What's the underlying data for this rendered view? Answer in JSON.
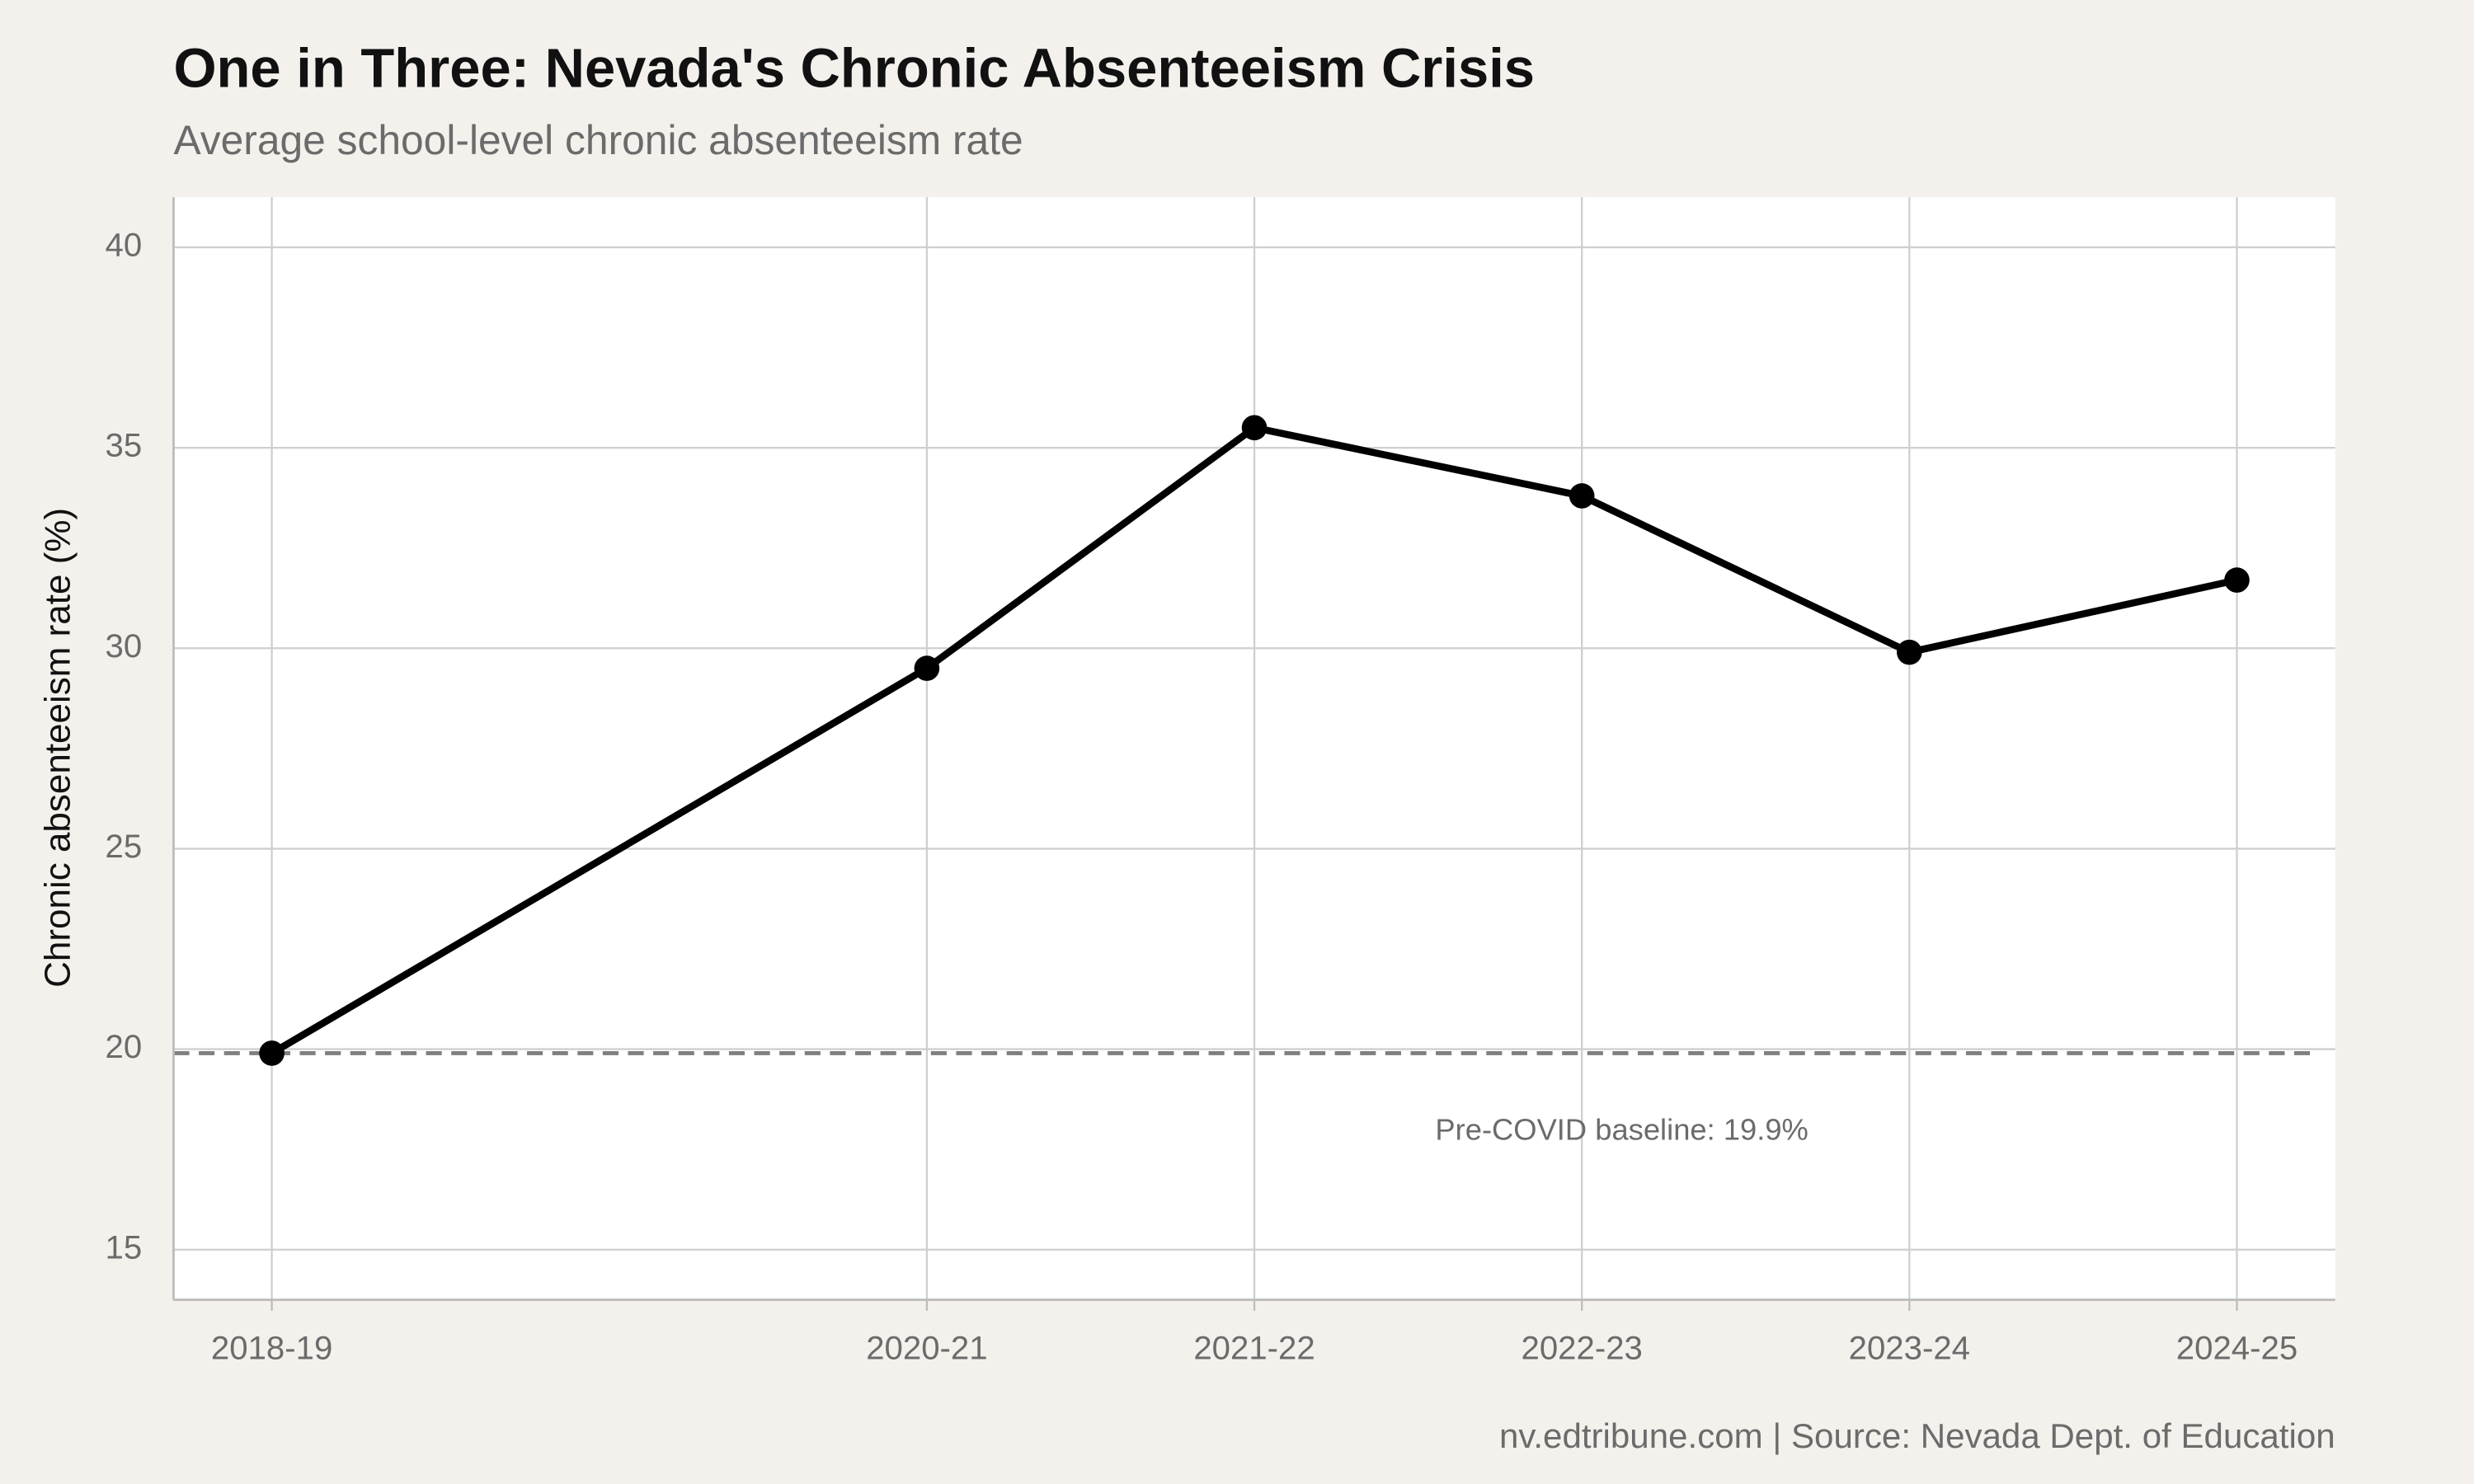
{
  "chart_data": {
    "type": "line",
    "title": "One in Three: Nevada's Chronic Absenteeism Crisis",
    "subtitle": "Average school-level chronic absenteeism rate",
    "y_label": "Chronic absenteeism rate (%)",
    "caption": "nv.edtribune.com | Source: Nevada Dept. of Education",
    "x": [
      2018,
      2020,
      2021,
      2022,
      2023,
      2024
    ],
    "series": [
      {
        "name": "Chronic absenteeism rate",
        "color": "#000000",
        "values": [
          19.9,
          29.5,
          35.5,
          33.8,
          29.9,
          31.7
        ]
      }
    ],
    "xlim": [
      2017.7,
      2024.3
    ],
    "xticks": [
      {
        "value": 2018,
        "label": "2018-19"
      },
      {
        "value": 2020,
        "label": "2020-21"
      },
      {
        "value": 2021,
        "label": "2021-22"
      },
      {
        "value": 2022,
        "label": "2022-23"
      },
      {
        "value": 2023,
        "label": "2023-24"
      },
      {
        "value": 2024,
        "label": "2024-25"
      }
    ],
    "ylim": [
      13.75,
      41.25
    ],
    "yticks": [
      15,
      20,
      25,
      30,
      35,
      40
    ],
    "grid": true,
    "reference_line": {
      "value": 19.9,
      "label": "Pre-COVID baseline: 19.9%",
      "color": "#7f7f7f"
    }
  }
}
